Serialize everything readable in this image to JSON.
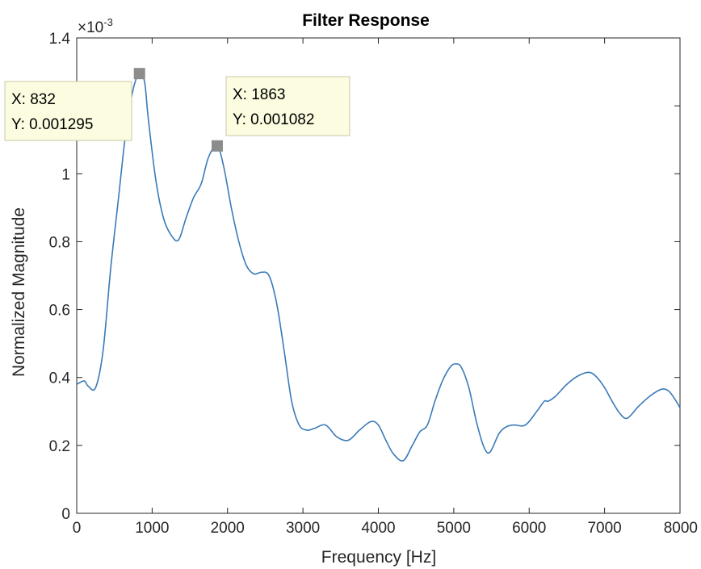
{
  "chart_data": {
    "type": "line",
    "title": "Filter Response",
    "xlabel": "Frequency [Hz]",
    "ylabel": "Normalized Magnitude",
    "y_exponent_label": "×10",
    "y_exponent_power": "-3",
    "xlim": [
      0,
      8000
    ],
    "ylim": [
      0,
      1.4
    ],
    "x_ticks": [
      0,
      1000,
      2000,
      3000,
      4000,
      5000,
      6000,
      7000,
      8000
    ],
    "x_tick_labels": [
      "0",
      "1000",
      "2000",
      "3000",
      "4000",
      "5000",
      "6000",
      "7000",
      "8000"
    ],
    "y_ticks": [
      0,
      0.2,
      0.4,
      0.6,
      0.8,
      1.0,
      1.2,
      1.4
    ],
    "y_tick_labels": [
      "0",
      "0.2",
      "0.4",
      "0.6",
      "0.8",
      "1",
      "1.2",
      "1.4"
    ],
    "grid": false,
    "line_color": "#3a7ab8",
    "series": [
      {
        "x": [
          0,
          100,
          150,
          250,
          350,
          450,
          550,
          650,
          750,
          832,
          900,
          950,
          1050,
          1150,
          1250,
          1350,
          1450,
          1550,
          1650,
          1750,
          1863,
          1950,
          2050,
          2150,
          2250,
          2350,
          2450,
          2550,
          2650,
          2750,
          2850,
          2950,
          3050,
          3150,
          3300,
          3450,
          3600,
          3750,
          3900,
          4000,
          4100,
          4200,
          4330,
          4450,
          4550,
          4650,
          4750,
          4850,
          4950,
          5020,
          5100,
          5200,
          5300,
          5400,
          5480,
          5600,
          5700,
          5800,
          5950,
          6100,
          6200,
          6250,
          6350,
          6500,
          6650,
          6800,
          6900,
          7000,
          7100,
          7200,
          7300,
          7450,
          7600,
          7750,
          7850,
          7950,
          8000
        ],
        "y": [
          0.38,
          0.39,
          0.375,
          0.37,
          0.48,
          0.72,
          0.92,
          1.12,
          1.25,
          1.295,
          1.27,
          1.16,
          0.98,
          0.87,
          0.82,
          0.805,
          0.87,
          0.93,
          0.97,
          1.05,
          1.082,
          1.02,
          0.9,
          0.8,
          0.73,
          0.705,
          0.71,
          0.7,
          0.62,
          0.48,
          0.33,
          0.26,
          0.245,
          0.25,
          0.26,
          0.225,
          0.215,
          0.245,
          0.27,
          0.26,
          0.215,
          0.175,
          0.155,
          0.2,
          0.24,
          0.26,
          0.33,
          0.39,
          0.43,
          0.44,
          0.43,
          0.37,
          0.27,
          0.195,
          0.18,
          0.235,
          0.255,
          0.26,
          0.26,
          0.3,
          0.33,
          0.33,
          0.345,
          0.38,
          0.405,
          0.415,
          0.4,
          0.37,
          0.33,
          0.295,
          0.28,
          0.315,
          0.345,
          0.365,
          0.36,
          0.33,
          0.31
        ]
      }
    ],
    "datatips": [
      {
        "x": 832,
        "y": 0.001295,
        "x_text": "X: 832",
        "y_text": "Y: 0.001295"
      },
      {
        "x": 1863,
        "y": 0.001082,
        "x_text": "X: 1863",
        "y_text": "Y: 0.001082"
      }
    ]
  }
}
